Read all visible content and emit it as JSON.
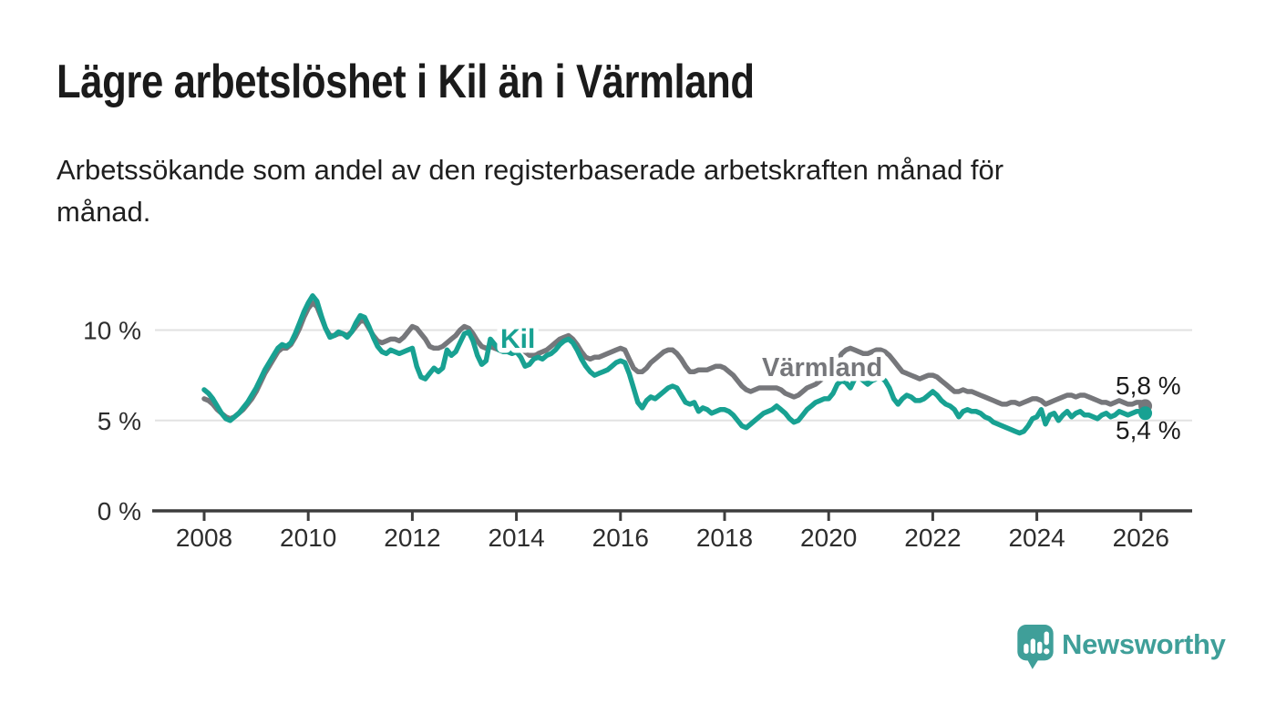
{
  "header": {
    "title": "Lägre arbetslöshet i Kil än i Värmland",
    "subtitle": "Arbetssökande som andel av den registerbaserade arbetskraften månad för månad.",
    "subtitle_line1": "Arbetssökande som andel av den registerbaserade arbetskraften månad för",
    "subtitle_line2": "månad."
  },
  "chart_data": {
    "type": "line",
    "title": "Lägre arbetslöshet i Kil än i Värmland",
    "x_unit": "month",
    "x_start": "2008-01",
    "x_end": "2026-02",
    "x_tick_labels": [
      "2008",
      "2010",
      "2012",
      "2014",
      "2016",
      "2018",
      "2020",
      "2022",
      "2024",
      "2026"
    ],
    "y_tick_labels": [
      "0 %",
      "5 %",
      "10 %"
    ],
    "y_tick_values": [
      0,
      5,
      10
    ],
    "grid_values": [
      5,
      10
    ],
    "ylim": [
      0,
      12.6
    ],
    "grid": true,
    "legend_position": "inline-labels",
    "axis_color": "#3d3d3d",
    "grid_color": "#e2e2e2",
    "series": [
      {
        "name": "Värmland",
        "color": "#76777b",
        "end_value_label": "5,8 %",
        "values": [
          6.2,
          6.1,
          5.9,
          5.6,
          5.4,
          5.2,
          5.1,
          5.2,
          5.4,
          5.6,
          5.9,
          6.2,
          6.6,
          7.1,
          7.6,
          8.0,
          8.4,
          8.8,
          9.0,
          9.0,
          9.2,
          9.6,
          10.1,
          10.7,
          11.2,
          11.5,
          11.3,
          10.7,
          10.1,
          9.7,
          9.7,
          9.8,
          9.8,
          9.7,
          9.9,
          10.2,
          10.5,
          10.5,
          10.1,
          9.7,
          9.4,
          9.3,
          9.4,
          9.5,
          9.5,
          9.4,
          9.6,
          9.9,
          10.2,
          10.1,
          9.8,
          9.5,
          9.1,
          9.0,
          9.0,
          9.1,
          9.3,
          9.5,
          9.7,
          10.0,
          10.2,
          10.1,
          9.8,
          9.4,
          9.1,
          9.0,
          9.1,
          9.0,
          8.9,
          9.0,
          9.0,
          9.1,
          9.1,
          9.0,
          8.8,
          8.6,
          8.6,
          8.7,
          8.8,
          8.9,
          9.1,
          9.3,
          9.5,
          9.6,
          9.7,
          9.5,
          9.2,
          8.8,
          8.5,
          8.4,
          8.5,
          8.5,
          8.6,
          8.7,
          8.8,
          8.9,
          9.0,
          8.9,
          8.4,
          7.9,
          7.7,
          7.7,
          7.9,
          8.2,
          8.4,
          8.6,
          8.8,
          8.9,
          8.9,
          8.7,
          8.4,
          8.0,
          7.7,
          7.7,
          7.8,
          7.8,
          7.8,
          7.9,
          8.0,
          8.0,
          7.9,
          7.7,
          7.5,
          7.2,
          6.9,
          6.7,
          6.6,
          6.7,
          6.8,
          6.8,
          6.8,
          6.8,
          6.8,
          6.7,
          6.5,
          6.4,
          6.3,
          6.4,
          6.6,
          6.8,
          6.9,
          7.0,
          7.2,
          7.4,
          7.5,
          7.8,
          8.3,
          8.7,
          8.9,
          9.0,
          8.9,
          8.8,
          8.7,
          8.7,
          8.8,
          8.9,
          8.9,
          8.8,
          8.6,
          8.3,
          8.0,
          7.7,
          7.6,
          7.5,
          7.4,
          7.3,
          7.4,
          7.5,
          7.5,
          7.4,
          7.2,
          7.0,
          6.8,
          6.6,
          6.6,
          6.7,
          6.6,
          6.6,
          6.5,
          6.4,
          6.3,
          6.2,
          6.1,
          6.0,
          5.9,
          5.9,
          6.0,
          6.0,
          5.9,
          6.0,
          6.1,
          6.2,
          6.2,
          6.1,
          5.9,
          6.0,
          6.1,
          6.2,
          6.3,
          6.4,
          6.4,
          6.3,
          6.4,
          6.4,
          6.3,
          6.2,
          6.1,
          6.0,
          6.0,
          5.9,
          6.0,
          6.1,
          6.0,
          5.9,
          5.9,
          6.0,
          6.0,
          5.8
        ]
      },
      {
        "name": "Kil",
        "color": "#18a192",
        "end_value_label": "5,4 %",
        "values": [
          6.7,
          6.5,
          6.2,
          5.8,
          5.4,
          5.1,
          5.0,
          5.2,
          5.4,
          5.7,
          6.0,
          6.4,
          6.8,
          7.3,
          7.8,
          8.2,
          8.6,
          9.0,
          9.2,
          9.1,
          9.3,
          9.8,
          10.4,
          11.0,
          11.5,
          11.9,
          11.6,
          10.8,
          10.1,
          9.6,
          9.7,
          9.9,
          9.8,
          9.6,
          9.9,
          10.4,
          10.8,
          10.7,
          10.2,
          9.6,
          9.1,
          8.8,
          8.7,
          8.9,
          8.8,
          8.7,
          8.8,
          8.9,
          9.0,
          8.0,
          7.4,
          7.3,
          7.6,
          7.9,
          7.7,
          7.9,
          8.9,
          8.6,
          8.8,
          9.3,
          9.8,
          9.9,
          9.4,
          8.6,
          8.1,
          8.3,
          9.5,
          9.2,
          8.9,
          8.8,
          8.8,
          8.7,
          8.8,
          8.5,
          8.0,
          8.1,
          8.4,
          8.5,
          8.4,
          8.6,
          8.7,
          8.9,
          9.2,
          9.4,
          9.5,
          9.3,
          8.9,
          8.4,
          8.0,
          7.7,
          7.5,
          7.6,
          7.7,
          7.8,
          8.0,
          8.2,
          8.3,
          8.2,
          7.6,
          6.8,
          6.0,
          5.7,
          6.1,
          6.3,
          6.2,
          6.4,
          6.6,
          6.8,
          6.9,
          6.8,
          6.4,
          6.0,
          5.9,
          6.0,
          5.5,
          5.7,
          5.6,
          5.4,
          5.5,
          5.6,
          5.6,
          5.5,
          5.3,
          5.0,
          4.7,
          4.6,
          4.8,
          5.0,
          5.2,
          5.4,
          5.5,
          5.6,
          5.8,
          5.6,
          5.4,
          5.1,
          4.9,
          5.0,
          5.3,
          5.6,
          5.8,
          6.0,
          6.1,
          6.2,
          6.2,
          6.5,
          7.0,
          7.2,
          7.1,
          6.8,
          7.3,
          7.4,
          7.2,
          7.0,
          7.2,
          7.3,
          7.4,
          7.2,
          6.8,
          6.2,
          5.9,
          6.2,
          6.4,
          6.3,
          6.1,
          6.1,
          6.2,
          6.4,
          6.6,
          6.4,
          6.1,
          5.9,
          5.8,
          5.6,
          5.2,
          5.5,
          5.6,
          5.5,
          5.5,
          5.4,
          5.2,
          5.1,
          4.9,
          4.8,
          4.7,
          4.6,
          4.5,
          4.4,
          4.3,
          4.4,
          4.7,
          5.1,
          5.2,
          5.6,
          4.8,
          5.3,
          5.4,
          5.0,
          5.3,
          5.5,
          5.2,
          5.4,
          5.5,
          5.3,
          5.3,
          5.2,
          5.1,
          5.3,
          5.4,
          5.2,
          5.3,
          5.5,
          5.4,
          5.3,
          5.4,
          5.5,
          5.5,
          5.4
        ]
      }
    ]
  },
  "footer": {
    "brand": "Newsworthy",
    "logo_icon": "bar-chart-speech-bubble-icon",
    "brand_color": "#3f9f99"
  }
}
